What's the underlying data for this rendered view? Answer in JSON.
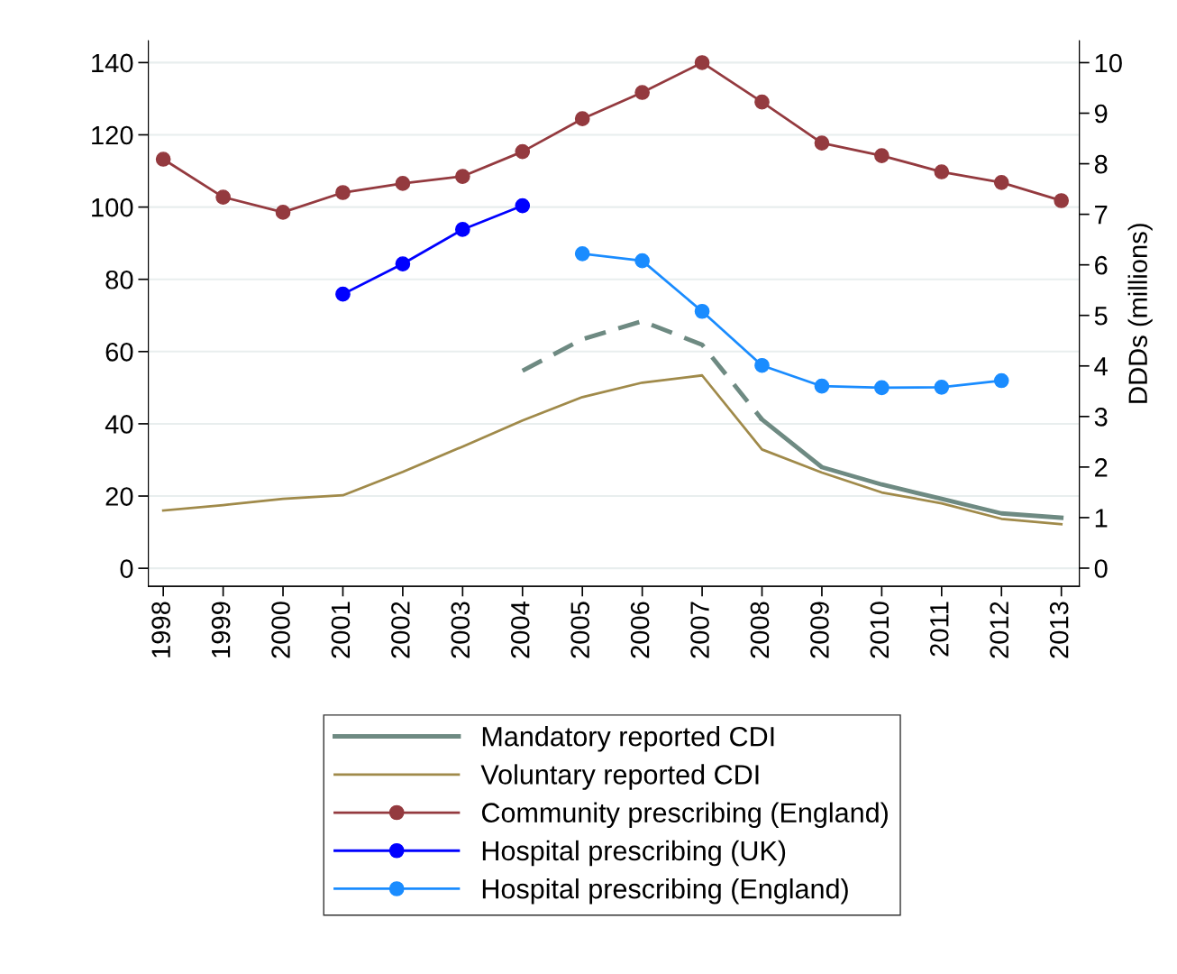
{
  "chart_data": {
    "type": "line",
    "y2label": "DDDs (millions)",
    "categories": [
      "1998",
      "1999",
      "2000",
      "2001",
      "2002",
      "2003",
      "2004",
      "2005",
      "2006",
      "2007",
      "2008",
      "2009",
      "2010",
      "2011",
      "2012",
      "2013"
    ],
    "series": [
      {
        "name": "Mandatory reported CDI",
        "color": "#6e8a82",
        "line_style": "solid",
        "marker": "none",
        "values": [
          null,
          null,
          null,
          null,
          null,
          null,
          null,
          null,
          null,
          null,
          41.2,
          28.0,
          23.2,
          19.2,
          15.2,
          14.0
        ]
      },
      {
        "color": "#6e8a82",
        "line_style": "dashed",
        "marker": "none",
        "values": [
          null,
          null,
          null,
          null,
          null,
          null,
          54.7,
          63.4,
          68.4,
          61.9,
          41.2,
          null,
          null,
          null,
          null,
          null
        ]
      },
      {
        "name": "Voluntary reported CDI",
        "color": "#a08a4a",
        "line_style": "solid",
        "marker": "none",
        "values": [
          16.0,
          17.5,
          19.2,
          20.2,
          26.7,
          33.7,
          40.9,
          47.4,
          51.4,
          53.4,
          32.9,
          26.5,
          21.0,
          18.0,
          13.7,
          12.2
        ]
      },
      {
        "name": "Community prescribing (England)",
        "color": "#943a3f",
        "axis": "y2",
        "line_style": "solid",
        "marker": "circle",
        "values": [
          8.09,
          7.34,
          7.04,
          7.43,
          7.61,
          7.75,
          8.24,
          8.89,
          9.41,
          10.0,
          9.22,
          8.41,
          8.16,
          7.84,
          7.63,
          7.27
        ]
      },
      {
        "name": "Hospital prescribing (UK)",
        "color": "#0000ff",
        "axis": "y2",
        "line_style": "solid",
        "marker": "circle",
        "values": [
          null,
          null,
          null,
          5.42,
          6.02,
          6.7,
          7.17,
          null,
          null,
          null,
          null,
          null,
          null,
          null,
          null,
          null
        ]
      },
      {
        "name": "Hospital prescribing (England)",
        "color": "#1a8cff",
        "axis": "y2",
        "line_style": "solid",
        "marker": "circle",
        "values": [
          null,
          null,
          null,
          null,
          null,
          null,
          null,
          6.22,
          6.08,
          5.08,
          4.01,
          3.6,
          3.57,
          3.58,
          3.71,
          null
        ]
      }
    ],
    "ylim": [
      -5,
      146
    ],
    "yticks": [
      0,
      20,
      40,
      60,
      80,
      100,
      120,
      140
    ],
    "y2lim": [
      -0.36,
      10.43
    ],
    "y2ticks": [
      0,
      1,
      2,
      3,
      4,
      5,
      6,
      7,
      8,
      9,
      10
    ],
    "grid": "y",
    "legend": "bottom"
  }
}
